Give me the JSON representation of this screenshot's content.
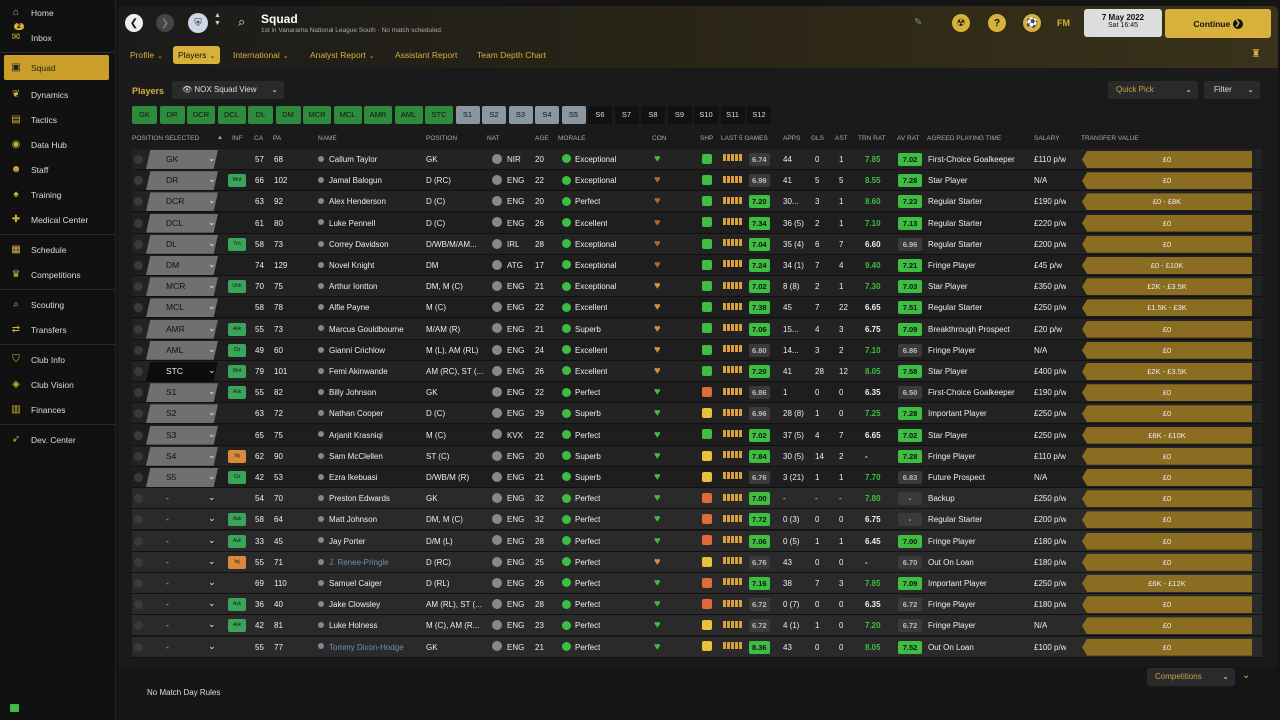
{
  "sidebar": {
    "items": [
      {
        "label": "Home",
        "icon": "home-icon",
        "glyph": "⌂"
      },
      {
        "label": "Inbox",
        "icon": "inbox-icon",
        "glyph": "✉",
        "badge": "2"
      },
      {
        "label": "Squad",
        "icon": "squad-icon",
        "glyph": "▣",
        "active": true
      },
      {
        "label": "Dynamics",
        "icon": "dynamics-icon",
        "glyph": "❦"
      },
      {
        "label": "Tactics",
        "icon": "tactics-icon",
        "glyph": "▤"
      },
      {
        "label": "Data Hub",
        "icon": "datahub-icon",
        "glyph": "◉"
      },
      {
        "label": "Staff",
        "icon": "staff-icon",
        "glyph": "☻"
      },
      {
        "label": "Training",
        "icon": "training-icon",
        "glyph": "♠"
      },
      {
        "label": "Medical Center",
        "icon": "medical-icon",
        "glyph": "✚"
      },
      {
        "label": "Schedule",
        "icon": "schedule-icon",
        "glyph": "▦"
      },
      {
        "label": "Competitions",
        "icon": "trophy-icon",
        "glyph": "♛"
      },
      {
        "label": "Scouting",
        "icon": "scouting-icon",
        "glyph": "⌕"
      },
      {
        "label": "Transfers",
        "icon": "transfers-icon",
        "glyph": "⇄"
      },
      {
        "label": "Club Info",
        "icon": "clubinfo-icon",
        "glyph": "⛉"
      },
      {
        "label": "Club Vision",
        "icon": "clubvision-icon",
        "glyph": "◈"
      },
      {
        "label": "Finances",
        "icon": "finances-icon",
        "glyph": "▥"
      },
      {
        "label": "Dev. Center",
        "icon": "devcenter-icon",
        "glyph": "➶"
      }
    ]
  },
  "header": {
    "title": "Squad",
    "subtitle": "1st in Vanarama National League South · No match scheduled.",
    "date": "7 May 2022",
    "time": "Sat 16:45",
    "continue": "Continue",
    "fm": "FM"
  },
  "tabs": [
    "Profile",
    "Players",
    "International",
    "Analyst Report",
    "Assistant Report",
    "Team Depth Chart"
  ],
  "players_label": "Players",
  "view": "NOX Squad View",
  "quick_pick": "Quick Pick",
  "filter": "Filter",
  "position_buttons": [
    "GK",
    "DR",
    "DCR",
    "DCL",
    "DL",
    "DM",
    "MCR",
    "MCL",
    "AMR",
    "AML",
    "STC",
    "S1",
    "S2",
    "S3",
    "S4",
    "S5",
    "S6",
    "S7",
    "S8",
    "S9",
    "S10",
    "S11",
    "S12"
  ],
  "columns": [
    "POSITION SELECTED",
    "INF",
    "CA",
    "PA",
    "NAME",
    "POSITION",
    "NAT",
    "AGE",
    "MORALE",
    "CON",
    "SHP",
    "LAST 5 GAMES",
    "APPS",
    "GLS",
    "AST",
    "TRN RAT",
    "AV RAT",
    "AGREED PLAYING TIME",
    "SALARY",
    "TRANSFER VALUE"
  ],
  "players": [
    {
      "sel": "GK",
      "inf": "",
      "ca": "57",
      "pa": "68",
      "name": "Callum Taylor",
      "pos": "GK",
      "nat": "NIR",
      "age": "20",
      "morale": "Exceptional",
      "l5": "6.74",
      "l5g": false,
      "apps": "44",
      "gls": "0",
      "ast": "1",
      "trn": "7.85",
      "av": "7.02",
      "apt": "First-Choice Goalkeeper",
      "sal": "£110 p/w",
      "tv": "£0"
    },
    {
      "sel": "DR",
      "inf": "Wnt",
      "ca": "66",
      "pa": "102",
      "name": "Jamal Balogun",
      "pos": "D (RC)",
      "nat": "ENG",
      "age": "22",
      "morale": "Exceptional",
      "l5": "6.98",
      "l5g": false,
      "apps": "41",
      "gls": "5",
      "ast": "5",
      "trn": "8.55",
      "av": "7.28",
      "apt": "Star Player",
      "sal": "N/A",
      "tv": "£0"
    },
    {
      "sel": "DCR",
      "inf": "",
      "ca": "63",
      "pa": "92",
      "name": "Alex Henderson",
      "pos": "D (C)",
      "nat": "ENG",
      "age": "20",
      "morale": "Perfect",
      "l5": "7.20",
      "l5g": true,
      "apps": "30...",
      "gls": "3",
      "ast": "1",
      "trn": "8.60",
      "av": "7.23",
      "apt": "Regular Starter",
      "sal": "£190 p/w",
      "tv": "£0 - £8K"
    },
    {
      "sel": "DCL",
      "inf": "",
      "ca": "61",
      "pa": "80",
      "name": "Luke Pennell",
      "pos": "D (C)",
      "nat": "ENG",
      "age": "26",
      "morale": "Excellent",
      "l5": "7.34",
      "l5g": true,
      "apps": "36 (5)",
      "gls": "2",
      "ast": "1",
      "trn": "7.10",
      "av": "7.13",
      "apt": "Regular Starter",
      "sal": "£220 p/w",
      "tv": "£0"
    },
    {
      "sel": "DL",
      "inf": "Trn",
      "ca": "58",
      "pa": "73",
      "name": "Correy Davidson",
      "pos": "D/WB/M/AM...",
      "nat": "IRL",
      "age": "28",
      "morale": "Exceptional",
      "l5": "7.04",
      "l5g": true,
      "apps": "35 (4)",
      "gls": "6",
      "ast": "7",
      "trn": "6.60",
      "av": "6.96",
      "apt": "Regular Starter",
      "sal": "£200 p/w",
      "tv": "£0"
    },
    {
      "sel": "DM",
      "inf": "",
      "ca": "74",
      "pa": "129",
      "name": "Novel Knight",
      "pos": "DM",
      "nat": "ATG",
      "age": "17",
      "morale": "Exceptional",
      "l5": "7.24",
      "l5g": true,
      "apps": "34 (1)",
      "gls": "7",
      "ast": "4",
      "trn": "9.40",
      "av": "7.21",
      "apt": "Fringe Player",
      "sal": "£45 p/w",
      "tv": "£0 - £10K"
    },
    {
      "sel": "MCR",
      "inf": "Unh",
      "ca": "70",
      "pa": "75",
      "name": "Arthur Iontton",
      "pos": "DM, M (C)",
      "nat": "ENG",
      "age": "21",
      "morale": "Exceptional",
      "l5": "7.02",
      "l5g": true,
      "apps": "8 (8)",
      "gls": "2",
      "ast": "1",
      "trn": "7.30",
      "av": "7.03",
      "apt": "Star Player",
      "sal": "£350 p/w",
      "tv": "£2K - £3.5K"
    },
    {
      "sel": "MCL",
      "inf": "",
      "ca": "58",
      "pa": "78",
      "name": "Alfie Payne",
      "pos": "M (C)",
      "nat": "ENG",
      "age": "22",
      "morale": "Excellent",
      "l5": "7.38",
      "l5g": true,
      "apps": "45",
      "gls": "7",
      "ast": "22",
      "trn": "6.65",
      "av": "7.51",
      "apt": "Regular Starter",
      "sal": "£250 p/w",
      "tv": "£1.5K - £3K"
    },
    {
      "sel": "AMR",
      "inf": "Ask",
      "ca": "55",
      "pa": "73",
      "name": "Marcus Gouldbourne",
      "pos": "M/AM (R)",
      "nat": "ENG",
      "age": "21",
      "morale": "Superb",
      "l5": "7.06",
      "l5g": true,
      "apps": "15...",
      "gls": "4",
      "ast": "3",
      "trn": "6.75",
      "av": "7.09",
      "apt": "Breakthrough Prospect",
      "sal": "£20 p/w",
      "tv": "£0"
    },
    {
      "sel": "AML",
      "inf": "Ctr",
      "ca": "49",
      "pa": "60",
      "name": "Gianni Crichlow",
      "pos": "M (L), AM (RL)",
      "nat": "ENG",
      "age": "24",
      "morale": "Excellent",
      "l5": "6.80",
      "l5g": false,
      "apps": "14...",
      "gls": "3",
      "ast": "2",
      "trn": "7.10",
      "av": "6.86",
      "apt": "Fringe Player",
      "sal": "N/A",
      "tv": "£0"
    },
    {
      "sel": "STC",
      "inf": "Wnt",
      "ca": "79",
      "pa": "101",
      "name": "Femi Akinwande",
      "pos": "AM (RC), ST (...",
      "nat": "ENG",
      "age": "26",
      "morale": "Excellent",
      "l5": "7.20",
      "l5g": true,
      "apps": "41",
      "gls": "28",
      "ast": "12",
      "trn": "8.05",
      "av": "7.58",
      "apt": "Star Player",
      "sal": "£400 p/w",
      "tv": "£2K - £3.5K"
    },
    {
      "sel": "S1",
      "inf": "Ask",
      "ca": "55",
      "pa": "82",
      "name": "Billy Johnson",
      "pos": "GK",
      "nat": "ENG",
      "age": "22",
      "morale": "Perfect",
      "l5": "6.86",
      "l5g": false,
      "apps": "1",
      "gls": "0",
      "ast": "0",
      "trn": "6.35",
      "av": "6.50",
      "apt": "First-Choice Goalkeeper",
      "sal": "£190 p/w",
      "tv": "£0"
    },
    {
      "sel": "S2",
      "inf": "",
      "ca": "63",
      "pa": "72",
      "name": "Nathan Cooper",
      "pos": "D (C)",
      "nat": "ENG",
      "age": "29",
      "morale": "Superb",
      "l5": "6.96",
      "l5g": false,
      "apps": "28 (8)",
      "gls": "1",
      "ast": "0",
      "trn": "7.25",
      "av": "7.28",
      "apt": "Important Player",
      "sal": "£250 p/w",
      "tv": "£0"
    },
    {
      "sel": "S3",
      "inf": "",
      "ca": "65",
      "pa": "75",
      "name": "Arjanit Krasniqi",
      "pos": "M (C)",
      "nat": "KVX",
      "age": "22",
      "morale": "Perfect",
      "l5": "7.02",
      "l5g": true,
      "apps": "37 (5)",
      "gls": "4",
      "ast": "7",
      "trn": "6.65",
      "av": "7.02",
      "apt": "Star Player",
      "sal": "£250 p/w",
      "tv": "£6K - £10K"
    },
    {
      "sel": "S4",
      "inf": "Inj",
      "ca": "62",
      "pa": "90",
      "name": "Sam McClellen",
      "pos": "ST (C)",
      "nat": "ENG",
      "age": "20",
      "morale": "Superb",
      "l5": "7.84",
      "l5g": true,
      "apps": "30 (5)",
      "gls": "14",
      "ast": "2",
      "trn": "-",
      "av": "7.28",
      "apt": "Fringe Player",
      "sal": "£110 p/w",
      "tv": "£0"
    },
    {
      "sel": "S5",
      "inf": "Ctr",
      "ca": "42",
      "pa": "53",
      "name": "Ezra Ikebuasi",
      "pos": "D/WB/M (R)",
      "nat": "ENG",
      "age": "21",
      "morale": "Superb",
      "l5": "6.76",
      "l5g": false,
      "apps": "3 (21)",
      "gls": "1",
      "ast": "1",
      "trn": "7.70",
      "av": "6.83",
      "apt": "Future Prospect",
      "sal": "N/A",
      "tv": "£0"
    },
    {
      "sel": "-",
      "inf": "",
      "ca": "54",
      "pa": "70",
      "name": "Preston Edwards",
      "pos": "GK",
      "nat": "ENG",
      "age": "32",
      "morale": "Perfect",
      "l5": "7.00",
      "l5g": true,
      "apps": "-",
      "gls": "-",
      "ast": "-",
      "trn": "7.80",
      "av": "-",
      "apt": "Backup",
      "sal": "£250 p/w",
      "tv": "£0"
    },
    {
      "sel": "-",
      "inf": "Ask",
      "ca": "58",
      "pa": "64",
      "name": "Matt Johnson",
      "pos": "DM, M (C)",
      "nat": "ENG",
      "age": "32",
      "morale": "Perfect",
      "l5": "7.72",
      "l5g": true,
      "apps": "0 (3)",
      "gls": "0",
      "ast": "0",
      "trn": "6.75",
      "av": "-",
      "apt": "Regular Starter",
      "sal": "£200 p/w",
      "tv": "£0"
    },
    {
      "sel": "-",
      "inf": "Ask",
      "ca": "33",
      "pa": "45",
      "name": "Jay Porter",
      "pos": "D/M (L)",
      "nat": "ENG",
      "age": "28",
      "morale": "Perfect",
      "l5": "7.06",
      "l5g": true,
      "apps": "0 (5)",
      "gls": "1",
      "ast": "1",
      "trn": "6.45",
      "av": "7.00",
      "apt": "Fringe Player",
      "sal": "£180 p/w",
      "tv": "£0"
    },
    {
      "sel": "-",
      "inf": "Inj",
      "ca": "55",
      "pa": "71",
      "name": "J. Renee-Pringle",
      "pos": "D (RC)",
      "nat": "ENG",
      "age": "25",
      "morale": "Perfect",
      "l5": "6.76",
      "l5g": false,
      "apps": "43",
      "gls": "0",
      "ast": "0",
      "trn": "-",
      "av": "6.70",
      "apt": "Out On Loan",
      "sal": "£180 p/w",
      "tv": "£0",
      "loan": true
    },
    {
      "sel": "-",
      "inf": "",
      "ca": "69",
      "pa": "110",
      "name": "Samuel Caiger",
      "pos": "D (RL)",
      "nat": "ENG",
      "age": "26",
      "morale": "Perfect",
      "l5": "7.16",
      "l5g": true,
      "apps": "38",
      "gls": "7",
      "ast": "3",
      "trn": "7.85",
      "av": "7.09",
      "apt": "Important Player",
      "sal": "£250 p/w",
      "tv": "£6K - £12K"
    },
    {
      "sel": "-",
      "inf": "Ask",
      "ca": "36",
      "pa": "40",
      "name": "Jake Clowsley",
      "pos": "AM (RL), ST (...",
      "nat": "ENG",
      "age": "28",
      "morale": "Perfect",
      "l5": "6.72",
      "l5g": false,
      "apps": "0 (7)",
      "gls": "0",
      "ast": "0",
      "trn": "6.35",
      "av": "6.72",
      "apt": "Fringe Player",
      "sal": "£180 p/w",
      "tv": "£0"
    },
    {
      "sel": "-",
      "inf": "Ask",
      "ca": "42",
      "pa": "81",
      "name": "Luke Holness",
      "pos": "M (C), AM (R...",
      "nat": "ENG",
      "age": "23",
      "morale": "Perfect",
      "l5": "6.72",
      "l5g": false,
      "apps": "4 (1)",
      "gls": "1",
      "ast": "0",
      "trn": "7.20",
      "av": "6.72",
      "apt": "Fringe Player",
      "sal": "N/A",
      "tv": "£0"
    },
    {
      "sel": "-",
      "inf": "",
      "ca": "55",
      "pa": "77",
      "name": "Tommy Dixon-Hodge",
      "pos": "GK",
      "nat": "ENG",
      "age": "21",
      "morale": "Perfect",
      "l5": "8.36",
      "l5g": true,
      "apps": "43",
      "gls": "0",
      "ast": "0",
      "trn": "8.05",
      "av": "7.52",
      "apt": "Out On Loan",
      "sal": "£100 p/w",
      "tv": "£0",
      "loan": true
    }
  ],
  "competitions": "Competitions",
  "no_match": "No Match Day Rules",
  "colors": {
    "accent": "#d8b13a",
    "green": "#3ebd43"
  }
}
